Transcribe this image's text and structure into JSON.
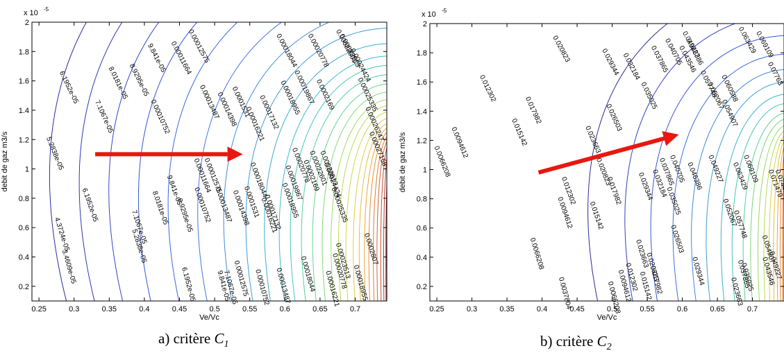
{
  "figure": [
    {
      "caption_prefix": "a) critère",
      "caption_var": "C",
      "caption_sub": "1",
      "chart_data": {
        "type": "contour",
        "xlabel": "Ve/Vc",
        "ylabel": "debit de gaz m3/s",
        "y_exponent_label": "x 10",
        "y_exponent_power": "-5",
        "xlim": [
          0.24,
          0.745
        ],
        "ylim": [
          0.1,
          2.0
        ],
        "x_ticks": [
          "0.25",
          "0.3",
          "0.35",
          "0.4",
          "0.45",
          "0.5",
          "0.55",
          "0.6",
          "0.65",
          "0.7"
        ],
        "y_ticks": [
          "0.2",
          "0.4",
          "0.6",
          "0.8",
          "1",
          "1.2",
          "1.4",
          "1.6",
          "1.8",
          "2"
        ],
        "levels": [
          {
            "label": "3.4609e-05",
            "x0": 0.29,
            "color": "#2a2a9c",
            "labels": [
              [
                0.29,
                0.33
              ]
            ]
          },
          {
            "label": "4.3724e-05",
            "x0": 0.33,
            "color": "#2d36b4",
            "labels": [
              [
                0.28,
                0.55
              ]
            ]
          },
          {
            "label": "5.2838e-05",
            "x0": 0.37,
            "color": "#2f46c8",
            "labels": [
              [
                0.27,
                1.1
              ],
              [
                0.39,
                0.47
              ]
            ]
          },
          {
            "label": "6.1952e-05",
            "x0": 0.41,
            "color": "#3355d6",
            "labels": [
              [
                0.29,
                1.55
              ],
              [
                0.32,
                0.75
              ],
              [
                0.46,
                0.21
              ]
            ]
          },
          {
            "label": "7.1067e-05",
            "x0": 0.45,
            "color": "#3a66dc",
            "labels": [
              [
                0.34,
                1.35
              ],
              [
                0.39,
                0.6
              ],
              [
                0.52,
                0.19
              ]
            ]
          },
          {
            "label": "8.0181e-05",
            "x0": 0.49,
            "color": "#3f78e0",
            "labels": [
              [
                0.36,
                1.58
              ],
              [
                0.42,
                0.73
              ]
            ]
          },
          {
            "label": "8.9295e-05",
            "x0": 0.525,
            "color": "#3f8ae0",
            "labels": [
              [
                0.39,
                1.6
              ],
              [
                0.455,
                0.68
              ]
            ]
          },
          {
            "label": "9.841e-05",
            "x0": 0.555,
            "color": "#3c9bdc",
            "labels": [
              [
                0.415,
                1.75
              ],
              [
                0.44,
                0.85
              ],
              [
                0.51,
                0.2
              ]
            ]
          },
          {
            "label": "0.00010752",
            "x0": 0.58,
            "color": "#3aacd4",
            "labels": [
              [
                0.42,
                1.35
              ],
              [
                0.48,
                0.75
              ],
              [
                0.565,
                0.19
              ]
            ]
          },
          {
            "label": "0.00011664",
            "x0": 0.6,
            "color": "#3bbcc8",
            "labels": [
              [
                0.45,
                1.75
              ],
              [
                0.48,
                0.95
              ]
            ]
          },
          {
            "label": "0.00012575",
            "x0": 0.615,
            "color": "#43c7b6",
            "labels": [
              [
                0.475,
                1.83
              ],
              [
                0.495,
                0.95
              ],
              [
                0.535,
                0.25
              ]
            ]
          },
          {
            "label": "0.00013487",
            "x0": 0.63,
            "color": "#52d0a0",
            "labels": [
              [
                0.49,
                1.45
              ],
              [
                0.51,
                0.75
              ],
              [
                0.595,
                0.2
              ]
            ]
          },
          {
            "label": "0.00014398",
            "x0": 0.645,
            "color": "#68d68a",
            "labels": [
              [
                0.515,
                1.4
              ],
              [
                0.535,
                0.73
              ]
            ]
          },
          {
            "label": "0.0001531",
            "x0": 0.658,
            "color": "#82da74",
            "labels": [
              [
                0.535,
                1.45
              ],
              [
                0.55,
                0.77
              ]
            ]
          },
          {
            "label": "0.00016221",
            "x0": 0.67,
            "color": "#9ddc60",
            "labels": [
              [
                0.555,
                1.3
              ],
              [
                0.575,
                0.68
              ],
              [
                0.665,
                0.18
              ]
            ]
          },
          {
            "label": "0.00017132",
            "x0": 0.68,
            "color": "#b8dc50",
            "labels": [
              [
                0.575,
                1.38
              ],
              [
                0.58,
                0.7
              ]
            ]
          },
          {
            "label": "0.00018044",
            "x0": 0.69,
            "color": "#d0d848",
            "labels": [
              [
                0.6,
                1.8
              ],
              [
                0.56,
                0.92
              ],
              [
                0.63,
                0.28
              ]
            ]
          },
          {
            "label": "0.00018955",
            "x0": 0.7,
            "color": "#e0cc44",
            "labels": [
              [
                0.605,
                1.48
              ],
              [
                0.605,
                0.78
              ],
              [
                0.705,
                0.22
              ]
            ]
          },
          {
            "label": "0.00019867",
            "x0": 0.708,
            "color": "#e8bc40",
            "labels": [
              [
                0.625,
                1.55
              ],
              [
                0.61,
                0.9
              ]
            ]
          },
          {
            "label": "0.00020778",
            "x0": 0.715,
            "color": "#eaa63a",
            "labels": [
              [
                0.645,
                1.8
              ],
              [
                0.62,
                1.02
              ],
              [
                0.675,
                0.3
              ]
            ]
          },
          {
            "label": "0.0002169",
            "x0": 0.721,
            "color": "#e89036",
            "labels": [
              [
                0.655,
                1.5
              ],
              [
                0.635,
                0.95
              ]
            ]
          },
          {
            "label": "0.00022601",
            "x0": 0.727,
            "color": "#e27a32",
            "labels": [
              [
                0.685,
                1.83
              ],
              [
                0.645,
                1.0
              ]
            ]
          },
          {
            "label": "0.00023513",
            "x0": 0.732,
            "color": "#d6622e",
            "labels": [
              [
                0.69,
                1.8
              ],
              [
                0.66,
                1.0
              ],
              [
                0.68,
                0.37
              ]
            ]
          },
          {
            "label": "0.00024424",
            "x0": 0.737,
            "color": "#c84c2c",
            "labels": [
              [
                0.705,
                1.7
              ],
              [
                0.665,
                0.92
              ]
            ]
          },
          {
            "label": "0.00025335",
            "x0": 0.741,
            "color": "#b63a2a",
            "labels": [
              [
                0.715,
                1.5
              ],
              [
                0.675,
                0.75
              ]
            ]
          },
          {
            "label": "0.00026247",
            "x0": 0.744,
            "color": "#a22c2a",
            "labels": [
              [
                0.725,
                1.3
              ]
            ]
          },
          {
            "label": "0.00027158",
            "x0": 0.745,
            "color": "#8c2426",
            "labels": [
              [
                0.73,
                1.13
              ]
            ]
          },
          {
            "label": "0.0002807",
            "x0": 0.746,
            "color": "#7a1c22",
            "labels": [
              [
                0.72,
                0.45
              ]
            ]
          }
        ],
        "annotation": {
          "type": "arrow",
          "color": "#e8170f",
          "from": [
            0.33,
            1.1
          ],
          "to": [
            0.54,
            1.1
          ]
        }
      }
    },
    {
      "caption_prefix": "b) critère",
      "caption_var": "C",
      "caption_sub": "2",
      "chart_data": {
        "type": "contour",
        "xlabel": "Ve/Vc",
        "ylabel": "debit de gaz m3/s",
        "y_exponent_label": "x 10",
        "y_exponent_power": "-5",
        "xlim": [
          0.24,
          0.745
        ],
        "ylim": [
          0.1,
          2.0
        ],
        "x_ticks": [
          "0.25",
          "0.3",
          "0.35",
          "0.4",
          "0.45",
          "0.5",
          "0.55",
          "0.6",
          "0.65",
          "0.7"
        ],
        "y_ticks": [
          "0.2",
          "0.4",
          "0.6",
          "0.8",
          "1",
          "1.2",
          "1.4",
          "1.6",
          "1.8",
          "2"
        ],
        "levels": [
          {
            "label": "0.0037804",
            "x0": 0.48,
            "color": "#2a2a9c",
            "labels": [
              [
                0.43,
                0.15
              ]
            ]
          },
          {
            "label": "0.0066208",
            "x0": 0.53,
            "color": "#2f40c0",
            "labels": [
              [
                0.255,
                1.05
              ],
              [
                0.39,
                0.42
              ],
              [
                0.5,
                0.12
              ]
            ]
          },
          {
            "label": "0.0094612",
            "x0": 0.565,
            "color": "#3556d6",
            "labels": [
              [
                0.28,
                1.18
              ],
              [
                0.43,
                0.7
              ],
              [
                0.515,
                0.2
              ]
            ]
          },
          {
            "label": "0.012302",
            "x0": 0.595,
            "color": "#3a6ede",
            "labels": [
              [
                0.32,
                1.55
              ],
              [
                0.435,
                0.85
              ],
              [
                0.525,
                0.26
              ]
            ]
          },
          {
            "label": "0.015142",
            "x0": 0.62,
            "color": "#3d86de",
            "labels": [
              [
                0.365,
                1.25
              ],
              [
                0.475,
                0.68
              ],
              [
                0.545,
                0.2
              ]
            ]
          },
          {
            "label": "0.017982",
            "x0": 0.64,
            "color": "#3c9cd8",
            "labels": [
              [
                0.385,
                1.4
              ],
              [
                0.5,
                0.85
              ],
              [
                0.56,
                0.24
              ]
            ]
          },
          {
            "label": "0.020823",
            "x0": 0.66,
            "color": "#3cb2cc",
            "labels": [
              [
                0.425,
                1.82
              ],
              [
                0.485,
                0.98
              ],
              [
                0.555,
                0.33
              ]
            ]
          },
          {
            "label": "0.023663",
            "x0": 0.675,
            "color": "#44c4b4",
            "labels": [
              [
                0.47,
                1.2
              ],
              [
                0.54,
                0.42
              ],
              [
                0.675,
                0.16
              ]
            ]
          },
          {
            "label": "0.026503",
            "x0": 0.69,
            "color": "#58d098",
            "labels": [
              [
                0.5,
                1.35
              ],
              [
                0.59,
                0.52
              ]
            ]
          },
          {
            "label": "0.029344",
            "x0": 0.7,
            "color": "#76d67a",
            "labels": [
              [
                0.495,
                1.73
              ],
              [
                0.545,
                0.88
              ],
              [
                0.62,
                0.3
              ]
            ]
          },
          {
            "label": "0.032184",
            "x0": 0.71,
            "color": "#98da62",
            "labels": [
              [
                0.525,
                1.7
              ],
              [
                0.565,
                0.9
              ]
            ]
          },
          {
            "label": "0.035025",
            "x0": 0.718,
            "color": "#bcd84e",
            "labels": [
              [
                0.55,
                1.5
              ],
              [
                0.585,
                0.78
              ],
              [
                0.69,
                0.26
              ]
            ]
          },
          {
            "label": "0.037865",
            "x0": 0.725,
            "color": "#d6d044",
            "labels": [
              [
                0.565,
                1.75
              ],
              [
                0.575,
                0.98
              ],
              [
                0.685,
                0.28
              ]
            ]
          },
          {
            "label": "0.040705",
            "x0": 0.731,
            "color": "#e6bc40",
            "labels": [
              [
                0.585,
                1.8
              ],
              [
                0.59,
                1.0
              ]
            ]
          },
          {
            "label": "0.043546",
            "x0": 0.736,
            "color": "#eaa43a",
            "labels": [
              [
                0.605,
                1.75
              ],
              [
                0.72,
                0.3
              ]
            ]
          },
          {
            "label": "0.046386",
            "x0": 0.74,
            "color": "#e88c36",
            "labels": [
              [
                0.615,
                1.8
              ],
              [
                0.615,
                0.95
              ]
            ]
          },
          {
            "label": "0.049227",
            "x0": 0.743,
            "color": "#e07432",
            "labels": [
              [
                0.61,
                1.85
              ],
              [
                0.645,
                1.0
              ],
              [
                0.73,
                0.34
              ]
            ]
          },
          {
            "label": "0.052067",
            "x0": 0.745,
            "color": "#d25e2e",
            "labels": [
              [
                0.645,
                1.5
              ],
              [
                0.665,
                0.7
              ]
            ]
          },
          {
            "label": "0.054907",
            "x0": 0.747,
            "color": "#c04a2c",
            "labels": [
              [
                0.665,
                1.38
              ],
              [
                0.72,
                0.45
              ]
            ]
          },
          {
            "label": "0.057748",
            "x0": 0.748,
            "color": "#aa382a",
            "labels": [
              [
                0.635,
                1.58
              ],
              [
                0.68,
                0.62
              ]
            ]
          },
          {
            "label": "0.060588",
            "x0": 0.749,
            "color": "#942a28",
            "labels": [
              [
                0.665,
                1.55
              ]
            ]
          },
          {
            "label": "0.063429",
            "x0": 0.75,
            "color": "#7e2024",
            "labels": [
              [
                0.69,
                1.88
              ],
              [
                0.68,
                0.95
              ]
            ]
          },
          {
            "label": "0.069109",
            "x0": 0.751,
            "color": "#6c1820",
            "labels": [
              [
                0.715,
                1.85
              ],
              [
                0.695,
                1.0
              ]
            ]
          },
          {
            "label": "0.07763",
            "x0": 0.752,
            "color": "#5c141c",
            "labels": [
              [
                0.73,
                1.65
              ]
            ]
          },
          {
            "label": "0.074479",
            "x0": 0.753,
            "color": "#5a131b",
            "labels": [
              [
                0.74,
                0.9
              ]
            ]
          },
          {
            "label": "0.071479",
            "x0": 0.7525,
            "color": "#60151d",
            "labels": [
              [
                0.73,
                0.9
              ]
            ]
          }
        ],
        "annotation": {
          "type": "arrow",
          "color": "#e8170f",
          "from": [
            0.395,
            0.98
          ],
          "to": [
            0.595,
            1.24
          ]
        }
      }
    }
  ]
}
